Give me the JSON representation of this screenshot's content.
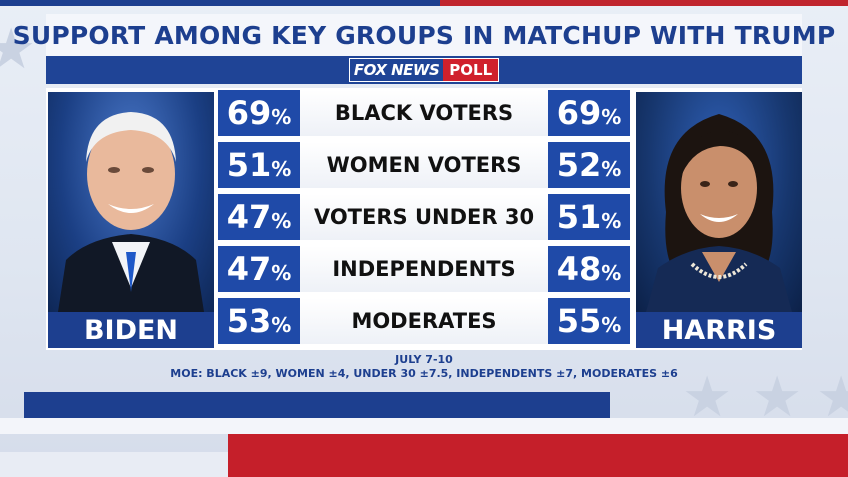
{
  "title": "SUPPORT AMONG KEY GROUPS IN MATCHUP WITH TRUMP",
  "brand": {
    "fox": "FOX NEWS",
    "poll": "POLL"
  },
  "candidates": {
    "left": {
      "name": "BIDEN"
    },
    "right": {
      "name": "HARRIS"
    }
  },
  "chart_data": {
    "type": "table",
    "title": "SUPPORT AMONG KEY GROUPS IN MATCHUP WITH TRUMP",
    "columns": [
      "BIDEN",
      "HARRIS"
    ],
    "unit": "%",
    "rows": [
      {
        "group": "BLACK VOTERS",
        "biden": 69,
        "harris": 69
      },
      {
        "group": "WOMEN VOTERS",
        "biden": 51,
        "harris": 52
      },
      {
        "group": "VOTERS UNDER 30",
        "biden": 47,
        "harris": 51
      },
      {
        "group": "INDEPENDENTS",
        "biden": 47,
        "harris": 48
      },
      {
        "group": "MODERATES",
        "biden": 53,
        "harris": 55
      }
    ]
  },
  "footer": {
    "date": "JULY 7-10",
    "moe": "MOE: BLACK ±9, WOMEN ±4, UNDER 30 ±7.5, INDEPENDENTS ±7, MODERATES ±6"
  },
  "colors": {
    "navy": "#1d3f8f",
    "pct_blue": "#1f4aa8",
    "red": "#c51f2a"
  }
}
